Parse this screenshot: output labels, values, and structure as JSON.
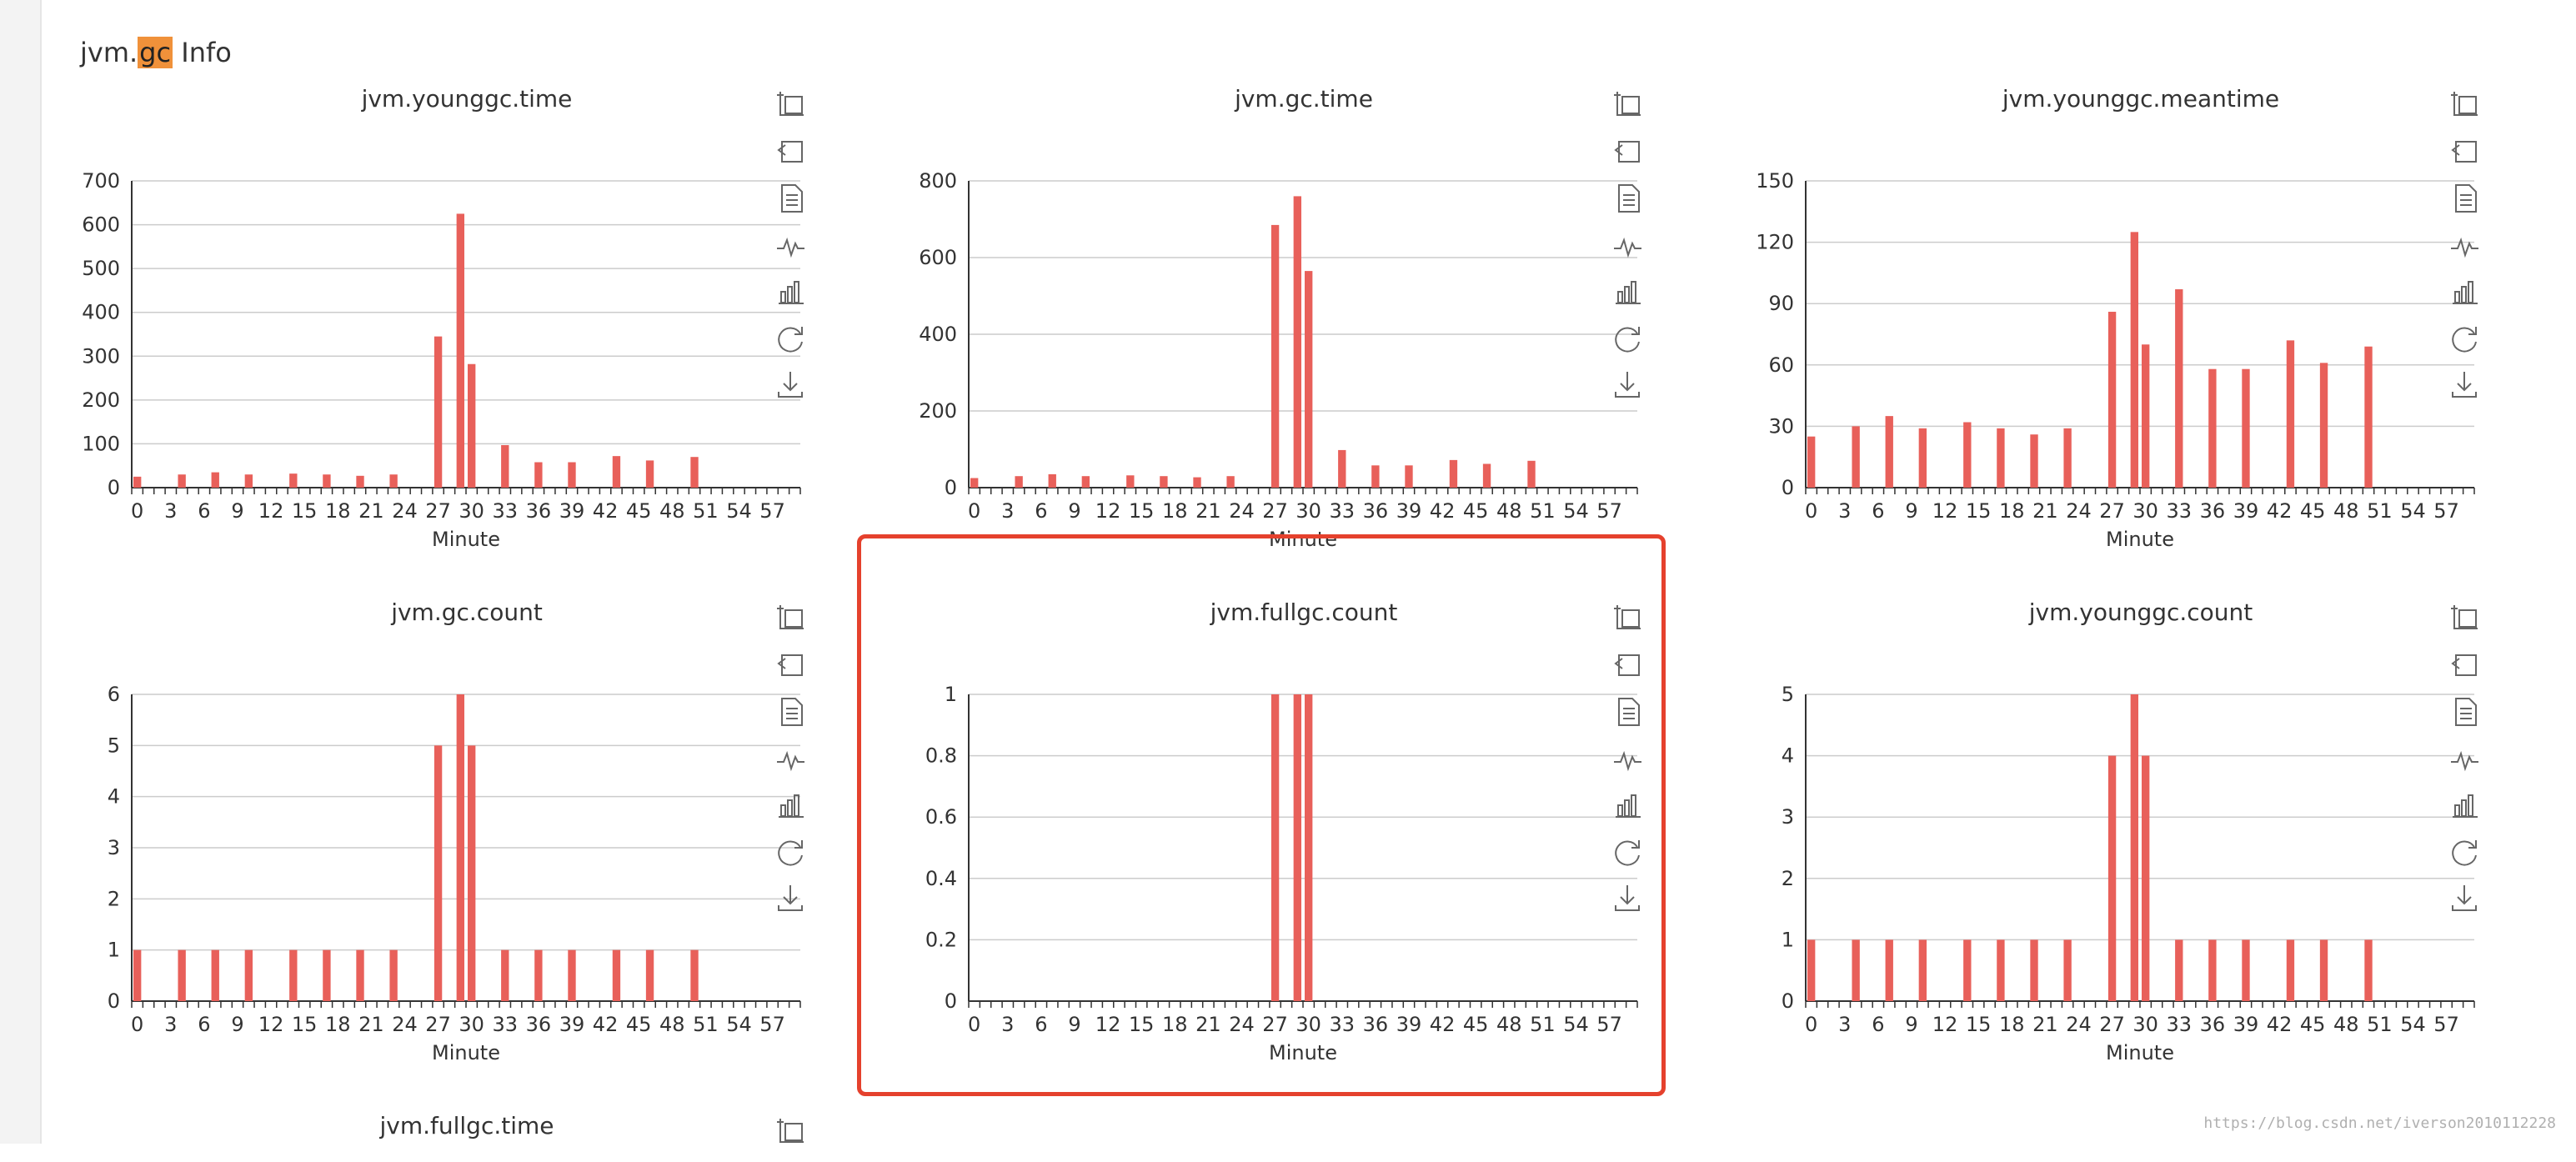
{
  "header": {
    "prefix": "jvm.",
    "highlight": "gc",
    "suffix": " Info"
  },
  "colors": {
    "bar": "#e8605a",
    "grid": "#cccccc",
    "axis": "#333333",
    "highlight": "#e5412d"
  },
  "x_categories": [
    0,
    1,
    2,
    3,
    4,
    5,
    6,
    7,
    8,
    9,
    10,
    11,
    12,
    13,
    14,
    15,
    16,
    17,
    18,
    19,
    20,
    21,
    22,
    23,
    24,
    25,
    26,
    27,
    28,
    29,
    30,
    31,
    32,
    33,
    34,
    35,
    36,
    37,
    38,
    39,
    40,
    41,
    42,
    43,
    44,
    45,
    46,
    47,
    48,
    49,
    50,
    51,
    52,
    53,
    54,
    55,
    56,
    57,
    58,
    59
  ],
  "x_tick_labels": [
    "0",
    "3",
    "6",
    "9",
    "12",
    "15",
    "18",
    "21",
    "24",
    "27",
    "30",
    "33",
    "36",
    "39",
    "42",
    "45",
    "48",
    "51",
    "54",
    "57"
  ],
  "toolbox_icons": [
    "zoom-icon",
    "zoom-reset-icon",
    "data-view-icon",
    "line-chart-icon",
    "bar-chart-icon",
    "restore-icon",
    "save-image-icon"
  ],
  "chart_data": [
    {
      "type": "bar",
      "title": "jvm.younggc.time",
      "xlabel": "Minute",
      "ylabel": "",
      "ylim": [
        0,
        700
      ],
      "yticks": [
        0,
        100,
        200,
        300,
        400,
        500,
        600,
        700
      ],
      "points": [
        [
          0,
          25
        ],
        [
          4,
          30
        ],
        [
          7,
          35
        ],
        [
          10,
          30
        ],
        [
          14,
          32
        ],
        [
          17,
          30
        ],
        [
          20,
          27
        ],
        [
          23,
          30
        ],
        [
          27,
          345
        ],
        [
          29,
          625
        ],
        [
          30,
          282
        ],
        [
          33,
          97
        ],
        [
          36,
          58
        ],
        [
          39,
          58
        ],
        [
          43,
          72
        ],
        [
          46,
          62
        ],
        [
          50,
          70
        ]
      ]
    },
    {
      "type": "bar",
      "title": "jvm.gc.time",
      "xlabel": "Minute",
      "ylabel": "",
      "ylim": [
        0,
        800
      ],
      "yticks": [
        0,
        200,
        400,
        600,
        800
      ],
      "points": [
        [
          0,
          25
        ],
        [
          4,
          30
        ],
        [
          7,
          35
        ],
        [
          10,
          30
        ],
        [
          14,
          32
        ],
        [
          17,
          30
        ],
        [
          20,
          27
        ],
        [
          23,
          30
        ],
        [
          27,
          685
        ],
        [
          29,
          760
        ],
        [
          30,
          565
        ],
        [
          33,
          98
        ],
        [
          36,
          58
        ],
        [
          39,
          58
        ],
        [
          43,
          72
        ],
        [
          46,
          62
        ],
        [
          50,
          70
        ]
      ]
    },
    {
      "type": "bar",
      "title": "jvm.younggc.meantime",
      "xlabel": "Minute",
      "ylabel": "",
      "ylim": [
        0,
        150
      ],
      "yticks": [
        0,
        30,
        60,
        90,
        120,
        150
      ],
      "points": [
        [
          0,
          25
        ],
        [
          4,
          30
        ],
        [
          7,
          35
        ],
        [
          10,
          29
        ],
        [
          14,
          32
        ],
        [
          17,
          29
        ],
        [
          20,
          26
        ],
        [
          23,
          29
        ],
        [
          27,
          86
        ],
        [
          29,
          125
        ],
        [
          30,
          70
        ],
        [
          33,
          97
        ],
        [
          36,
          58
        ],
        [
          39,
          58
        ],
        [
          43,
          72
        ],
        [
          46,
          61
        ],
        [
          50,
          69
        ]
      ]
    },
    {
      "type": "bar",
      "title": "jvm.gc.count",
      "xlabel": "Minute",
      "ylabel": "",
      "ylim": [
        0,
        6
      ],
      "yticks": [
        0,
        1,
        2,
        3,
        4,
        5,
        6
      ],
      "points": [
        [
          0,
          1
        ],
        [
          4,
          1
        ],
        [
          7,
          1
        ],
        [
          10,
          1
        ],
        [
          14,
          1
        ],
        [
          17,
          1
        ],
        [
          20,
          1
        ],
        [
          23,
          1
        ],
        [
          27,
          5
        ],
        [
          29,
          6
        ],
        [
          30,
          5
        ],
        [
          33,
          1
        ],
        [
          36,
          1
        ],
        [
          39,
          1
        ],
        [
          43,
          1
        ],
        [
          46,
          1
        ],
        [
          50,
          1
        ]
      ]
    },
    {
      "type": "bar",
      "title": "jvm.fullgc.count",
      "xlabel": "Minute",
      "ylabel": "",
      "ylim": [
        0,
        1
      ],
      "yticks": [
        0,
        0.2,
        0.4,
        0.6,
        0.8,
        1
      ],
      "points": [
        [
          27,
          1
        ],
        [
          29,
          1
        ],
        [
          30,
          1
        ]
      ]
    },
    {
      "type": "bar",
      "title": "jvm.younggc.count",
      "xlabel": "Minute",
      "ylabel": "",
      "ylim": [
        0,
        5
      ],
      "yticks": [
        0,
        1,
        2,
        3,
        4,
        5
      ],
      "points": [
        [
          0,
          1
        ],
        [
          4,
          1
        ],
        [
          7,
          1
        ],
        [
          10,
          1
        ],
        [
          14,
          1
        ],
        [
          17,
          1
        ],
        [
          20,
          1
        ],
        [
          23,
          1
        ],
        [
          27,
          4
        ],
        [
          29,
          5
        ],
        [
          30,
          4
        ],
        [
          33,
          1
        ],
        [
          36,
          1
        ],
        [
          39,
          1
        ],
        [
          43,
          1
        ],
        [
          46,
          1
        ],
        [
          50,
          1
        ]
      ]
    },
    {
      "type": "bar",
      "title": "jvm.fullgc.time",
      "xlabel": "Minute",
      "ylabel": "",
      "ylim": [
        0,
        1
      ],
      "yticks": [],
      "points": []
    }
  ],
  "watermark": "https://blog.csdn.net/iverson2010112228"
}
